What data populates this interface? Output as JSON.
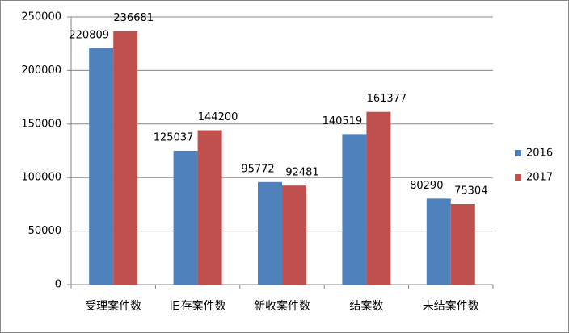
{
  "chart_data": {
    "type": "bar",
    "categories": [
      "受理案件数",
      "旧存案件数",
      "新收案件数",
      "结案数",
      "未结案件数"
    ],
    "series": [
      {
        "name": "2016",
        "color": "#4f81bd",
        "values": [
          220809,
          125037,
          95772,
          140519,
          80290
        ]
      },
      {
        "name": "2017",
        "color": "#c0504d",
        "values": [
          236681,
          144200,
          92481,
          161377,
          75304
        ]
      }
    ],
    "ylim": [
      0,
      250000
    ],
    "yticks": [
      0,
      50000,
      100000,
      150000,
      200000,
      250000
    ],
    "grid": true,
    "legend": "right",
    "data_labels": true
  }
}
